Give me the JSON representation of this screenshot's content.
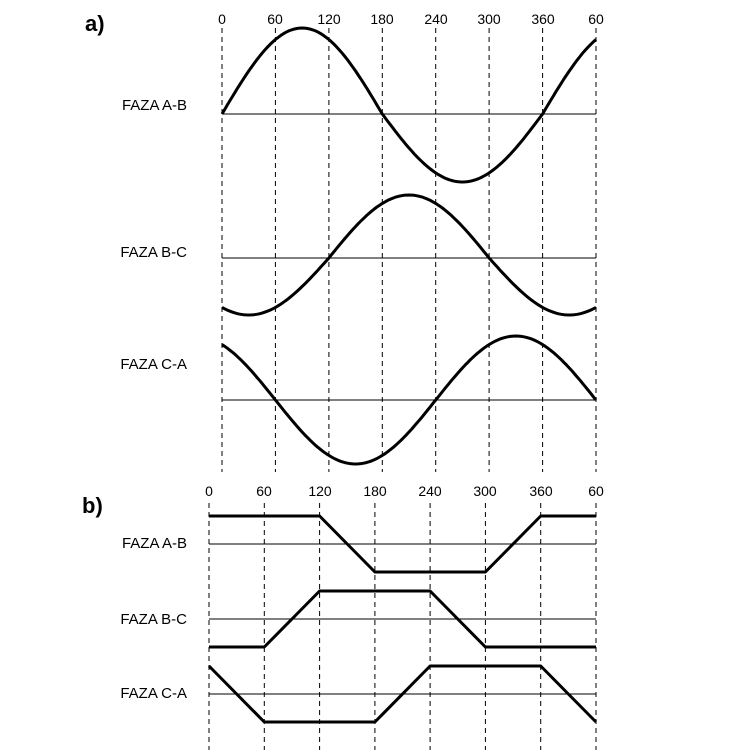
{
  "colors": {
    "line": "#000000",
    "background": "#ffffff",
    "text": "#000000"
  },
  "chart_data": [
    {
      "id": "a",
      "panel_label": "a)",
      "type": "line",
      "waveform": "sine",
      "x_unit": "degrees",
      "x_range": [
        0,
        420
      ],
      "x_ticks": [
        0,
        60,
        120,
        180,
        240,
        300,
        360,
        420
      ],
      "x_tick_labels": [
        "0",
        "60",
        "120",
        "180",
        "240",
        "300",
        "360",
        "60"
      ],
      "y_range": [
        -1,
        1
      ],
      "grid": "vertical-dashed",
      "legend_position": "left-of-each-trace",
      "series": [
        {
          "label": "FAZA A-B",
          "phase_deg": 0,
          "amplitude": 1
        },
        {
          "label": "FAZA B-C",
          "phase_deg": -120,
          "amplitude": 1
        },
        {
          "label": "FAZA C-A",
          "phase_deg": 120,
          "amplitude": 1
        }
      ]
    },
    {
      "id": "b",
      "panel_label": "b)",
      "type": "line",
      "waveform": "trapezoid",
      "x_unit": "degrees",
      "x_range": [
        0,
        420
      ],
      "x_ticks": [
        0,
        60,
        120,
        180,
        240,
        300,
        360,
        420
      ],
      "x_tick_labels": [
        "0",
        "60",
        "120",
        "180",
        "240",
        "300",
        "360",
        "60"
      ],
      "y_range": [
        -1,
        1
      ],
      "grid": "vertical-dashed",
      "legend_position": "left-of-each-trace",
      "series": [
        {
          "label": "FAZA A-B",
          "points": [
            [
              0,
              1
            ],
            [
              120,
              1
            ],
            [
              180,
              -1
            ],
            [
              300,
              -1
            ],
            [
              360,
              1
            ],
            [
              420,
              1
            ]
          ]
        },
        {
          "label": "FAZA B-C",
          "points": [
            [
              0,
              -1
            ],
            [
              60,
              -1
            ],
            [
              120,
              1
            ],
            [
              240,
              1
            ],
            [
              300,
              -1
            ],
            [
              420,
              -1
            ]
          ]
        },
        {
          "label": "FAZA C-A",
          "points": [
            [
              0,
              1
            ],
            [
              60,
              -1
            ],
            [
              180,
              -1
            ],
            [
              240,
              1
            ],
            [
              360,
              1
            ],
            [
              420,
              -1
            ]
          ]
        }
      ]
    }
  ]
}
